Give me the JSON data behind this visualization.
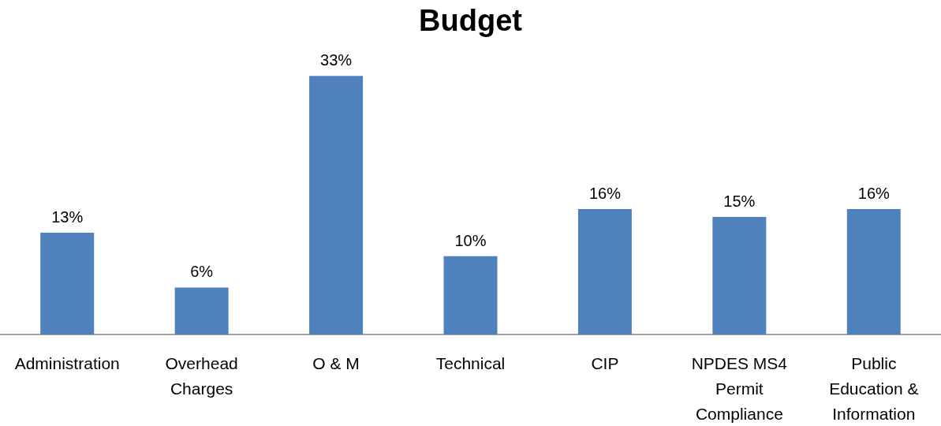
{
  "chart_data": {
    "type": "bar",
    "title": "Budget",
    "categories": [
      "Administration",
      "Overhead\nCharges",
      "O & M",
      "Technical",
      "CIP",
      "NPDES MS4\nPermit\nCompliance",
      "Public\nEducation &\nInformation"
    ],
    "values": [
      13,
      6,
      33,
      10,
      16,
      15,
      16
    ],
    "value_labels": [
      "13%",
      "6%",
      "33%",
      "10%",
      "16%",
      "15%",
      "16%"
    ],
    "color": "#4f81bd"
  }
}
